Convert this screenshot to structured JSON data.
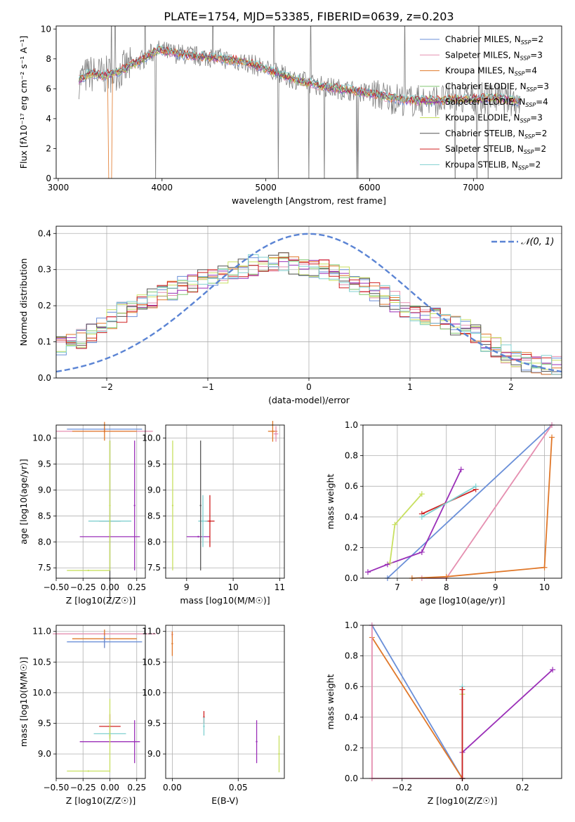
{
  "figure_title": "PLATE=1754, MJD=53385, FIBERID=0639, z=0.203",
  "colors": {
    "Chabrier MILES": "#6a8fd8",
    "Salpeter MILES": "#e58fb0",
    "Kroupa MILES": "#e0782a",
    "Chabrier ELODIE": "#80c870",
    "Salpeter ELODIE": "#9b30b8",
    "Kroupa ELODIE": "#c8e060",
    "Chabrier STELIB": "#555555",
    "Salpeter STELIB": "#d02020",
    "Kroupa STELIB": "#80d0d0",
    "data": "#808080",
    "gauss": "#5b84d4"
  },
  "chart_data": [
    {
      "type": "line",
      "panel": "spectrum",
      "xlabel": "wavelength [Angstrom, rest frame]",
      "ylabel": "Flux [fλ10⁻¹⁷ erg cm⁻² s⁻¹ A⁻¹]",
      "xlim": [
        2980,
        7850
      ],
      "ylim": [
        0,
        10.2
      ],
      "xticks": [
        3000,
        4000,
        5000,
        6000,
        7000
      ],
      "yticks": [
        0,
        2,
        4,
        6,
        8,
        10
      ],
      "grid": false,
      "legend_position": "top-right",
      "legend": [
        "Chabrier MILES, N_SSP=2",
        "Salpeter MILES, N_SSP=3",
        "Kroupa MILES, N_SSP=4",
        "Chabrier ELODIE, N_SSP=3",
        "Salpeter ELODIE, N_SSP=4",
        "Kroupa ELODIE, N_SSP=3",
        "Chabrier STELIB, N_SSP=2",
        "Salpeter STELIB, N_SSP=2",
        "Kroupa STELIB, N_SSP=2"
      ],
      "continuum": [
        [
          3200,
          6.6
        ],
        [
          3300,
          7.0
        ],
        [
          3450,
          6.9
        ],
        [
          3600,
          7.2
        ],
        [
          3800,
          7.9
        ],
        [
          3950,
          8.6
        ],
        [
          4100,
          8.4
        ],
        [
          4300,
          8.2
        ],
        [
          4500,
          8.1
        ],
        [
          4700,
          7.9
        ],
        [
          4850,
          7.7
        ],
        [
          5000,
          7.3
        ],
        [
          5200,
          6.8
        ],
        [
          5400,
          6.4
        ],
        [
          5600,
          6.1
        ],
        [
          5800,
          5.9
        ],
        [
          6000,
          5.7
        ],
        [
          6200,
          5.4
        ],
        [
          6400,
          5.2
        ],
        [
          6600,
          5.2
        ],
        [
          6800,
          5.3
        ],
        [
          7000,
          5.3
        ],
        [
          7200,
          5.4
        ],
        [
          7400,
          5.2
        ]
      ]
    },
    {
      "type": "line",
      "panel": "residuals",
      "xlabel": "(data-model)/error",
      "ylabel": "Normed distribution",
      "xlim": [
        -2.5,
        2.5
      ],
      "ylim": [
        0,
        0.42
      ],
      "xticks": [
        -2,
        -1,
        0,
        1,
        2
      ],
      "yticks": [
        0.0,
        0.1,
        0.2,
        0.3,
        0.4
      ],
      "grid": true,
      "legend_position": "top-right",
      "legend": [
        "𝒩(0, 1)"
      ],
      "gaussian": {
        "mean": 0,
        "sigma": 1
      },
      "hist_envelope": [
        [
          -2.5,
          0.09
        ],
        [
          -2.2,
          0.11
        ],
        [
          -2.0,
          0.15
        ],
        [
          -1.8,
          0.19
        ],
        [
          -1.6,
          0.21
        ],
        [
          -1.4,
          0.24
        ],
        [
          -1.2,
          0.26
        ],
        [
          -1.0,
          0.28
        ],
        [
          -0.8,
          0.29
        ],
        [
          -0.6,
          0.31
        ],
        [
          -0.4,
          0.32
        ],
        [
          -0.2,
          0.32
        ],
        [
          0.0,
          0.31
        ],
        [
          0.2,
          0.3
        ],
        [
          0.4,
          0.27
        ],
        [
          0.6,
          0.25
        ],
        [
          0.8,
          0.22
        ],
        [
          1.0,
          0.19
        ],
        [
          1.2,
          0.17
        ],
        [
          1.4,
          0.15
        ],
        [
          1.6,
          0.13
        ],
        [
          1.8,
          0.09
        ],
        [
          2.0,
          0.06
        ],
        [
          2.2,
          0.04
        ],
        [
          2.5,
          0.03
        ]
      ]
    },
    {
      "type": "scatter",
      "panel": "age_vs_Z",
      "xlabel": "Z [log10(Z/Z☉)]",
      "ylabel": "age  [log10(age/yr)]",
      "xlim": [
        -0.5,
        0.33
      ],
      "ylim": [
        7.3,
        10.25
      ],
      "xticks": [
        -0.5,
        -0.25,
        0.0,
        0.25
      ],
      "xticklabels": [
        "−0.50",
        "−0.25",
        "0.00",
        "0.25"
      ],
      "yticks": [
        7.5,
        8.0,
        8.5,
        9.0,
        9.5,
        10.0
      ],
      "grid": true,
      "points": [
        {
          "model": "Chabrier MILES",
          "x": -0.05,
          "y": 10.17,
          "xerr": 0.35,
          "yerr": 0.05
        },
        {
          "model": "Salpeter MILES",
          "x": -0.05,
          "y": 10.13,
          "xerr": 0.45,
          "yerr": 0.04
        },
        {
          "model": "Kroupa MILES",
          "x": -0.05,
          "y": 10.13,
          "xerr": 0.3,
          "yerr": 0.18
        },
        {
          "model": "Salpeter ELODIE",
          "x": 0.0,
          "y": 8.1,
          "xerr": 0.28,
          "yerr": 0.0
        },
        {
          "model": "Salpeter ELODIE",
          "x": 0.23,
          "y": 8.7,
          "xerr": 0.0,
          "yerr": 1.25
        },
        {
          "model": "Chabrier STELIB",
          "x": 0.0,
          "y": 8.4,
          "xerr": 0.1,
          "yerr": 1.55
        },
        {
          "model": "Kroupa STELIB",
          "x": 0.0,
          "y": 8.4,
          "xerr": 0.2,
          "yerr": 0.0
        },
        {
          "model": "Kroupa ELODIE",
          "x": -0.2,
          "y": 7.45,
          "xerr": 0.2,
          "yerr": 0.0
        },
        {
          "model": "Kroupa ELODIE",
          "x": 0.0,
          "y": 8.7,
          "xerr": 0.0,
          "yerr": 1.25
        }
      ]
    },
    {
      "type": "scatter",
      "panel": "age_vs_mass",
      "xlabel": "mass [log10(M/M☉)]",
      "xlim": [
        8.55,
        11.1
      ],
      "ylim": [
        7.3,
        10.25
      ],
      "xticks": [
        9,
        10,
        11
      ],
      "yticks": [
        7.5,
        8.0,
        8.5,
        9.0,
        9.5,
        10.0
      ],
      "grid": true,
      "points": [
        {
          "model": "Kroupa MILES",
          "x": 10.85,
          "y": 10.13,
          "xerr": 0.1,
          "yerr": 0.2
        },
        {
          "model": "Salpeter MILES",
          "x": 10.92,
          "y": 10.08,
          "xerr": 0.05,
          "yerr": 0.15
        },
        {
          "model": "Kroupa ELODIE",
          "x": 8.7,
          "y": 8.7,
          "xerr": 0.0,
          "yerr": 1.25
        },
        {
          "model": "Salpeter ELODIE",
          "x": 9.25,
          "y": 8.1,
          "xerr": 0.25,
          "yerr": 0.0
        },
        {
          "model": "Salpeter STELIB",
          "x": 9.5,
          "y": 8.4,
          "xerr": 0.1,
          "yerr": 0.5
        },
        {
          "model": "Kroupa STELIB",
          "x": 9.35,
          "y": 8.4,
          "xerr": 0.1,
          "yerr": 0.5
        },
        {
          "model": "Chabrier STELIB",
          "x": 9.3,
          "y": 8.7,
          "xerr": 0.0,
          "yerr": 1.25
        }
      ]
    },
    {
      "type": "line",
      "panel": "weight_vs_age",
      "xlabel": "age  [log10(age/yr)]",
      "ylabel": "mass weight",
      "xlim": [
        6.3,
        10.35
      ],
      "ylim": [
        0,
        1
      ],
      "xticks": [
        7,
        8,
        9,
        10
      ],
      "yticks": [
        0.0,
        0.2,
        0.4,
        0.6,
        0.8,
        1.0
      ],
      "grid": true,
      "series": [
        {
          "model": "Chabrier MILES",
          "x": [
            6.8,
            10.15
          ],
          "y": [
            0.0,
            1.0
          ]
        },
        {
          "model": "Salpeter MILES",
          "x": [
            7.5,
            8.0,
            10.15
          ],
          "y": [
            0.0,
            0.0,
            1.0
          ]
        },
        {
          "model": "Kroupa MILES",
          "x": [
            7.3,
            8.0,
            10.0,
            10.15
          ],
          "y": [
            0.0,
            0.01,
            0.07,
            0.92
          ]
        },
        {
          "model": "Salpeter ELODIE",
          "x": [
            6.4,
            6.8,
            7.5,
            8.3
          ],
          "y": [
            0.04,
            0.09,
            0.17,
            0.71
          ]
        },
        {
          "model": "Kroupa ELODIE",
          "x": [
            6.85,
            6.95,
            7.5
          ],
          "y": [
            0.1,
            0.35,
            0.55
          ]
        },
        {
          "model": "Salpeter STELIB",
          "x": [
            7.5,
            8.6
          ],
          "y": [
            0.42,
            0.58
          ]
        },
        {
          "model": "Kroupa STELIB",
          "x": [
            7.5,
            8.6
          ],
          "y": [
            0.4,
            0.6
          ]
        }
      ]
    },
    {
      "type": "scatter",
      "panel": "mass_vs_Z",
      "xlabel": "Z [log10(Z/Z☉)]",
      "ylabel": "mass [log10(M/M☉)]",
      "xlim": [
        -0.5,
        0.33
      ],
      "ylim": [
        8.6,
        11.1
      ],
      "xticks": [
        -0.5,
        -0.25,
        0.0,
        0.25
      ],
      "xticklabels": [
        "−0.50",
        "−0.25",
        "0.00",
        "0.25"
      ],
      "yticks": [
        9.0,
        9.5,
        10.0,
        10.5,
        11.0
      ],
      "grid": true,
      "points": [
        {
          "model": "Salpeter MILES",
          "x": -0.05,
          "y": 10.96,
          "xerr": 0.48,
          "yerr": 0.02
        },
        {
          "model": "Kroupa MILES",
          "x": -0.05,
          "y": 10.88,
          "xerr": 0.3,
          "yerr": 0.15
        },
        {
          "model": "Chabrier MILES",
          "x": -0.05,
          "y": 10.83,
          "xerr": 0.35,
          "yerr": 0.1
        },
        {
          "model": "Salpeter STELIB",
          "x": 0.0,
          "y": 9.45,
          "xerr": 0.1,
          "yerr": 0.2
        },
        {
          "model": "Kroupa STELIB",
          "x": 0.0,
          "y": 9.33,
          "xerr": 0.15,
          "yerr": 0.1
        },
        {
          "model": "Salpeter ELODIE",
          "x": 0.0,
          "y": 9.2,
          "xerr": 0.28,
          "yerr": 0.0
        },
        {
          "model": "Salpeter ELODIE",
          "x": 0.23,
          "y": 9.2,
          "xerr": 0.0,
          "yerr": 0.35
        },
        {
          "model": "Kroupa ELODIE",
          "x": -0.2,
          "y": 8.72,
          "xerr": 0.2,
          "yerr": 0.0
        },
        {
          "model": "Kroupa ELODIE",
          "x": 0.0,
          "y": 9.3,
          "xerr": 0.0,
          "yerr": 0.6
        }
      ]
    },
    {
      "type": "scatter",
      "panel": "mass_vs_EBV",
      "xlabel": "E(B-V)",
      "xlim": [
        -0.005,
        0.085
      ],
      "ylim": [
        8.6,
        11.1
      ],
      "xticks": [
        0.0,
        0.05
      ],
      "xticklabels": [
        "0.00",
        "0.05"
      ],
      "yticks": [
        9.0,
        9.5,
        10.0,
        10.5,
        11.0
      ],
      "grid": true,
      "points": [
        {
          "model": "Salpeter MILES",
          "x": 0.0,
          "y": 10.95,
          "yerr": 0.05
        },
        {
          "model": "Kroupa MILES",
          "x": 0.0,
          "y": 10.8,
          "yerr": 0.2
        },
        {
          "model": "Salpeter STELIB",
          "x": 0.024,
          "y": 9.6,
          "yerr": 0.1
        },
        {
          "model": "Kroupa STELIB",
          "x": 0.024,
          "y": 9.45,
          "yerr": 0.15
        },
        {
          "model": "Salpeter ELODIE",
          "x": 0.064,
          "y": 9.2,
          "yerr": 0.35
        },
        {
          "model": "Kroupa ELODIE",
          "x": 0.081,
          "y": 9.0,
          "yerr": 0.3
        }
      ]
    },
    {
      "type": "line",
      "panel": "weight_vs_Z",
      "xlabel": "Z [log10(Z/Z☉)]",
      "ylabel": "mass weight",
      "xlim": [
        -0.33,
        0.33
      ],
      "ylim": [
        0,
        1
      ],
      "xticks": [
        -0.2,
        0.0,
        0.2
      ],
      "xticklabels": [
        "−0.2",
        "0.0",
        "0.2"
      ],
      "yticks": [
        0.0,
        0.2,
        0.4,
        0.6,
        0.8,
        1.0
      ],
      "grid": true,
      "series": [
        {
          "model": "Chabrier MILES",
          "x": [
            -0.3,
            0.0
          ],
          "y": [
            1.0,
            0.0
          ]
        },
        {
          "model": "Kroupa MILES",
          "x": [
            -0.3,
            0.0
          ],
          "y": [
            0.92,
            0.0
          ]
        },
        {
          "model": "Salpeter MILES",
          "x": [
            -0.3,
            -0.3,
            0.0
          ],
          "y": [
            1.0,
            0.0,
            0.0
          ]
        },
        {
          "model": "Salpeter ELODIE",
          "x": [
            0.0,
            0.0,
            0.3
          ],
          "y": [
            0.0,
            0.17,
            0.71
          ]
        },
        {
          "model": "Kroupa ELODIE",
          "x": [
            0.0,
            0.0
          ],
          "y": [
            0.0,
            0.55
          ]
        },
        {
          "model": "Kroupa STELIB",
          "x": [
            0.0,
            0.0
          ],
          "y": [
            0.0,
            0.6
          ]
        },
        {
          "model": "Salpeter STELIB",
          "x": [
            0.0,
            0.0
          ],
          "y": [
            0.0,
            0.58
          ]
        }
      ]
    }
  ]
}
